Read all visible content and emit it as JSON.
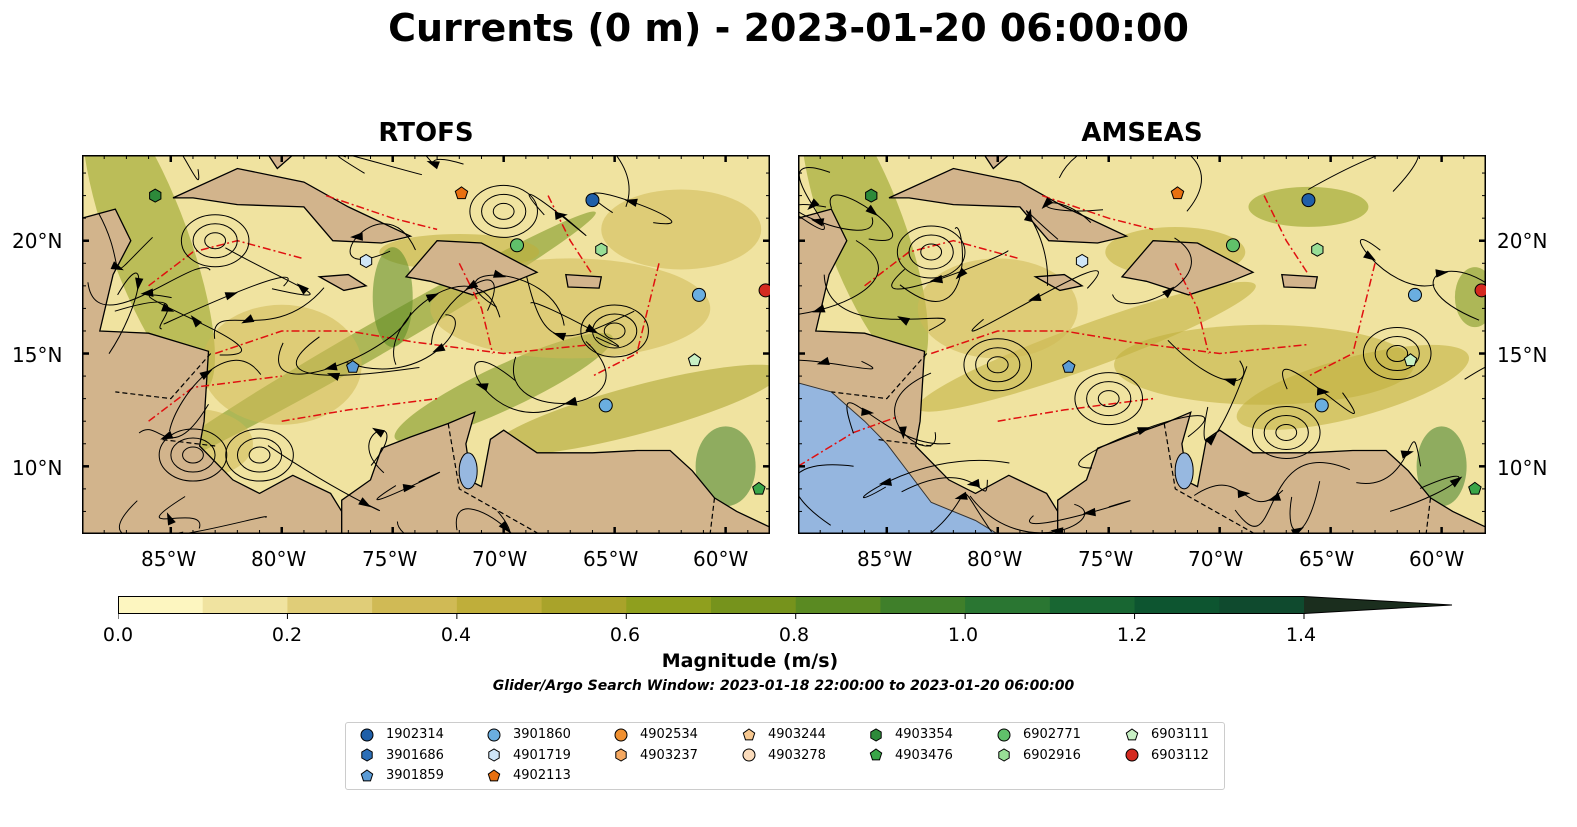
{
  "title": "Currents (0 m) - 2023-01-20 06:00:00",
  "panels": [
    {
      "name": "RTOFS"
    },
    {
      "name": "AMSEAS"
    }
  ],
  "map_axes": {
    "lon_ticks": [
      "85°W",
      "80°W",
      "75°W",
      "70°W",
      "65°W",
      "60°W"
    ],
    "lat_ticks": [
      "20°N",
      "15°N",
      "10°N"
    ]
  },
  "colorbar": {
    "label": "Magnitude (m/s)",
    "ticks": [
      "0.0",
      "0.2",
      "0.4",
      "0.6",
      "0.8",
      "1.0",
      "1.2",
      "1.4"
    ],
    "range": [
      0,
      1.5
    ],
    "extend": "max",
    "colors": [
      "#fdf6c0",
      "#f0e3a0",
      "#e0cd78",
      "#d0ba55",
      "#bfae3a",
      "#a9a32a",
      "#8f9f1e",
      "#76931c",
      "#5a8a22",
      "#3f7f2a",
      "#2a7632",
      "#186632",
      "#0d5530",
      "#0f4a2e",
      "#163d28",
      "#1b2e1e"
    ]
  },
  "search_window": "Glider/Argo Search Window: 2023-01-18 22:00:00 to 2023-01-20 06:00:00",
  "land_color": "#d2b48c",
  "ocean_outside_color": "#95b6df",
  "legend": [
    {
      "id": "1902314",
      "marker": "circle",
      "color": "#1f5fa8"
    },
    {
      "id": "3901686",
      "marker": "hexagon",
      "color": "#2c6fb7"
    },
    {
      "id": "3901859",
      "marker": "pentagon",
      "color": "#5b9bd5"
    },
    {
      "id": "3901860",
      "marker": "circle",
      "color": "#6aaee0"
    },
    {
      "id": "4901719",
      "marker": "hexagon",
      "color": "#cfe6f8"
    },
    {
      "id": "4902113",
      "marker": "pentagon",
      "color": "#e87010"
    },
    {
      "id": "4902534",
      "marker": "circle",
      "color": "#f09030"
    },
    {
      "id": "4903237",
      "marker": "hexagon",
      "color": "#f5a860"
    },
    {
      "id": "4903244",
      "marker": "pentagon",
      "color": "#f7c890"
    },
    {
      "id": "4903278",
      "marker": "circle",
      "color": "#fbdcbc"
    },
    {
      "id": "4903354",
      "marker": "hexagon",
      "color": "#2d8a3a"
    },
    {
      "id": "4903476",
      "marker": "pentagon",
      "color": "#3aa548"
    },
    {
      "id": "6902771",
      "marker": "circle",
      "color": "#60c06a"
    },
    {
      "id": "6902916",
      "marker": "hexagon",
      "color": "#98de96"
    },
    {
      "id": "6903111",
      "marker": "pentagon",
      "color": "#c8f0c4"
    },
    {
      "id": "6903112",
      "marker": "circle",
      "color": "#d42a20"
    }
  ],
  "floats_on_map": [
    {
      "id": "4903354",
      "lon": -85.7,
      "lat": 22.0
    },
    {
      "id": "4902113",
      "lon": -71.9,
      "lat": 22.1
    },
    {
      "id": "1902314",
      "lon": -66.0,
      "lat": 21.8
    },
    {
      "id": "6902771",
      "lon": -69.4,
      "lat": 19.8
    },
    {
      "id": "6902916",
      "lon": -65.6,
      "lat": 19.6
    },
    {
      "id": "4901719",
      "lon": -76.2,
      "lat": 19.1
    },
    {
      "id": "3901860",
      "lon": -61.2,
      "lat": 17.6
    },
    {
      "id": "6903112",
      "lon": -58.2,
      "lat": 17.8
    },
    {
      "id": "6903111",
      "lon": -61.4,
      "lat": 14.7
    },
    {
      "id": "3901859",
      "lon": -76.8,
      "lat": 14.4
    },
    {
      "id": "3901860",
      "lon": -65.4,
      "lat": 12.7
    },
    {
      "id": "4903476",
      "lon": -58.5,
      "lat": 9.0
    }
  ]
}
